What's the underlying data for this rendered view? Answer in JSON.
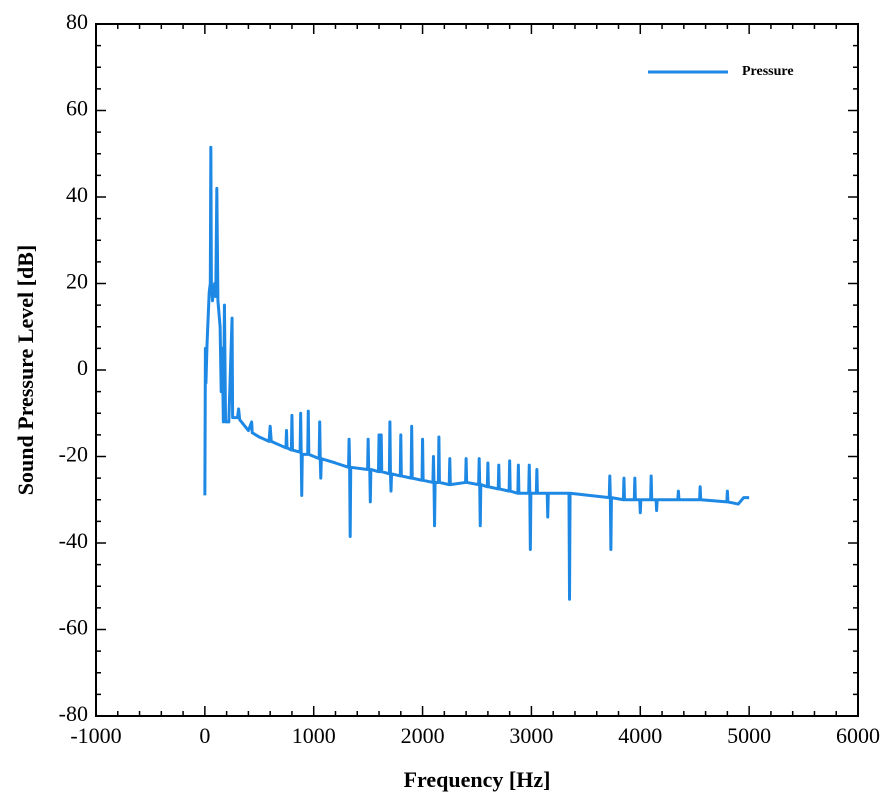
{
  "chart_data": {
    "type": "line",
    "xlabel": "Frequency [Hz]",
    "ylabel": "Sound Pressure Level [dB]",
    "xlim": [
      -1000,
      6000
    ],
    "xticks": [
      -1000,
      0,
      1000,
      2000,
      3000,
      4000,
      5000,
      6000
    ],
    "ylim": [
      -80,
      80
    ],
    "yticks": [
      -80,
      -60,
      -40,
      -20,
      0,
      20,
      40,
      60,
      80
    ],
    "legend": "upper right",
    "x": [
      0,
      5,
      10,
      20,
      40,
      50,
      55,
      60,
      70,
      90,
      100,
      110,
      120,
      140,
      150,
      160,
      170,
      180,
      190,
      220,
      250,
      255,
      300,
      310,
      320,
      400,
      430,
      435,
      500,
      590,
      600,
      610,
      700,
      745,
      750,
      755,
      795,
      800,
      805,
      875,
      880,
      885,
      890,
      895,
      945,
      950,
      955,
      1050,
      1055,
      1060,
      1065,
      1070,
      1200,
      1320,
      1325,
      1330,
      1335,
      1340,
      1495,
      1500,
      1505,
      1515,
      1520,
      1525,
      1595,
      1600,
      1605,
      1615,
      1620,
      1625,
      1695,
      1700,
      1705,
      1710,
      1715,
      1795,
      1800,
      1805,
      1895,
      1900,
      1905,
      1995,
      2000,
      2005,
      2095,
      2100,
      2105,
      2110,
      2115,
      2145,
      2150,
      2155,
      2245,
      2250,
      2255,
      2395,
      2400,
      2405,
      2515,
      2520,
      2525,
      2530,
      2535,
      2595,
      2600,
      2605,
      2695,
      2700,
      2705,
      2795,
      2800,
      2805,
      2875,
      2880,
      2885,
      2975,
      2980,
      2985,
      2990,
      2995,
      3045,
      3050,
      3055,
      3145,
      3150,
      3155,
      3345,
      3350,
      3355,
      3715,
      3720,
      3725,
      3730,
      3735,
      3845,
      3850,
      3855,
      3945,
      3950,
      3955,
      3995,
      4000,
      4005,
      4095,
      4100,
      4105,
      4145,
      4150,
      4155,
      4345,
      4350,
      4355,
      4545,
      4550,
      4555,
      4795,
      4800,
      4805,
      4900,
      4950,
      5000
    ],
    "series": [
      {
        "name": "Pressure",
        "color": "#1e88e5",
        "values": [
          -29,
          5,
          -3,
          6,
          18,
          20,
          51.5,
          20,
          16,
          20,
          17,
          42,
          16,
          10,
          -5,
          5,
          -12,
          15,
          -12,
          -12,
          12,
          -11,
          -11,
          -9,
          -11.5,
          -14,
          -12,
          -14.5,
          -15.5,
          -16.5,
          -13,
          -16.5,
          -17.5,
          -18,
          -14,
          -18,
          -18.5,
          -10.5,
          -18.5,
          -19,
          -10,
          -19,
          -29,
          -19.5,
          -19.5,
          -9.5,
          -19.5,
          -20.5,
          -12,
          -20.5,
          -25,
          -20.5,
          -21.5,
          -22.5,
          -16,
          -22.5,
          -38.5,
          -22.5,
          -23,
          -16,
          -23,
          -23,
          -30.5,
          -23,
          -23.5,
          -15,
          -23.5,
          -23.5,
          -15,
          -23.5,
          -24,
          -12,
          -24,
          -28,
          -24,
          -24.5,
          -15,
          -24.5,
          -25,
          -13,
          -25,
          -25.5,
          -16,
          -25.5,
          -26,
          -20,
          -26,
          -36,
          -26,
          -26,
          -15.5,
          -26,
          -26.5,
          -20.5,
          -26.5,
          -26,
          -20.5,
          -26,
          -26.5,
          -20.5,
          -26.5,
          -36,
          -26.5,
          -27,
          -21.5,
          -27,
          -27.5,
          -22,
          -27.5,
          -28,
          -21,
          -28,
          -28.5,
          -22,
          -28.5,
          -28.5,
          -22,
          -28.5,
          -41.5,
          -28.5,
          -28.5,
          -23,
          -28.5,
          -28.5,
          -34,
          -28.5,
          -28.5,
          -53,
          -28.5,
          -29.5,
          -24.5,
          -29.5,
          -41.5,
          -29.5,
          -30,
          -25,
          -30,
          -30,
          -25,
          -30,
          -30,
          -33,
          -30,
          -30,
          -24.5,
          -30,
          -30,
          -32.5,
          -30,
          -30,
          -28,
          -30,
          -30,
          -27,
          -30,
          -30.5,
          -28,
          -30.5,
          -31,
          -29.5,
          -29.5
        ]
      }
    ]
  }
}
